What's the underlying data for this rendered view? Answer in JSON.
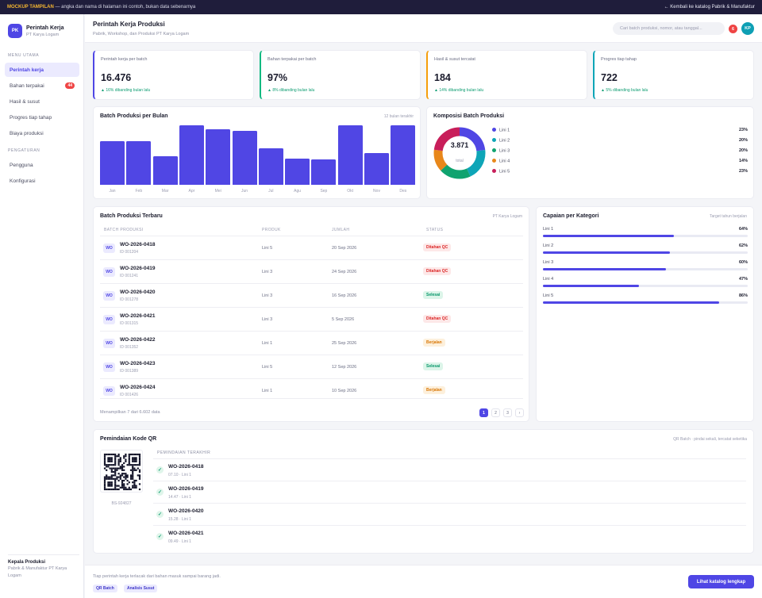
{
  "topbar": {
    "tag": "MOCKUP TAMPILAN",
    "notice": "— angka dan nama di halaman ini contoh, bukan data sebenarnya",
    "back_link": "← Kembali ke katalog Pabrik & Manufaktur"
  },
  "brand": {
    "logo": "PK",
    "title": "Perintah Kerja",
    "subtitle": "PT Karya Logam"
  },
  "sidebar": {
    "section_main": "MENU UTAMA",
    "items": [
      {
        "label": "Perintah kerja",
        "active": true
      },
      {
        "label": "Bahan terpakai",
        "badge": "44"
      },
      {
        "label": "Hasil & susut"
      },
      {
        "label": "Progres tiap tahap"
      },
      {
        "label": "Biaya produksi"
      }
    ],
    "section_settings": "PENGATURAN",
    "settings": [
      {
        "label": "Pengguna"
      },
      {
        "label": "Konfigurasi"
      }
    ],
    "user_name": "Kepala Produksi",
    "user_role": "Pabrik & Manufaktur PT Karya Logam"
  },
  "header": {
    "title": "Perintah Kerja Produksi",
    "subtitle": "Pabrik, Workshop, dan Produksi PT Karya Logam",
    "search_placeholder": "Cari batch produksi, nomor, atau tanggal...",
    "notif_count": "6",
    "avatar": "KP"
  },
  "kpis": [
    {
      "label": "Perintah kerja per batch",
      "value": "16.476",
      "delta": "▲ 16% dibanding bulan lalu",
      "color": "#4f46e5"
    },
    {
      "label": "Bahan terpakai per batch",
      "value": "97%",
      "delta": "▲ 8% dibanding bulan lalu",
      "color": "#10b981"
    },
    {
      "label": "Hasil & susut tercatat",
      "value": "184",
      "delta": "▲ 14% dibanding bulan lalu",
      "color": "#f59e0b"
    },
    {
      "label": "Progres tiap tahap",
      "value": "722",
      "delta": "▲ 5% dibanding bulan lalu",
      "color": "#0ea5b7"
    }
  ],
  "monthly": {
    "title": "Batch Produksi per Bulan",
    "note": "12 bulan terakhir"
  },
  "composition": {
    "title": "Komposisi Batch Produksi",
    "total": "3.871",
    "total_label": "total"
  },
  "recent": {
    "title": "Batch Produksi Terbaru",
    "note": "PT Karya Logam",
    "headers": [
      "BATCH PRODUKSI",
      "PRODUK",
      "JUMLAH",
      "STATUS"
    ],
    "rows": [
      {
        "badge": "WO",
        "code": "WO-2026-0418",
        "id": "ID 001204",
        "product": "Lini 5",
        "date": "20 Sep 2026",
        "status": "Ditahan QC"
      },
      {
        "badge": "WO",
        "code": "WO-2026-0419",
        "id": "ID 001241",
        "product": "Lini 3",
        "date": "24 Sep 2026",
        "status": "Ditahan QC"
      },
      {
        "badge": "WO",
        "code": "WO-2026-0420",
        "id": "ID 001278",
        "product": "Lini 3",
        "date": "16 Sep 2026",
        "status": "Selesai"
      },
      {
        "badge": "WO",
        "code": "WO-2026-0421",
        "id": "ID 001315",
        "product": "Lini 3",
        "date": "5 Sep 2026",
        "status": "Ditahan QC"
      },
      {
        "badge": "WO",
        "code": "WO-2026-0422",
        "id": "ID 001352",
        "product": "Lini 1",
        "date": "25 Sep 2026",
        "status": "Berjalan"
      },
      {
        "badge": "WO",
        "code": "WO-2026-0423",
        "id": "ID 001389",
        "product": "Lini 5",
        "date": "12 Sep 2026",
        "status": "Selesai"
      },
      {
        "badge": "WO",
        "code": "WO-2026-0424",
        "id": "ID 001426",
        "product": "Lini 1",
        "date": "10 Sep 2026",
        "status": "Berjalan"
      }
    ],
    "status_colors": {
      "Ditahan QC": {
        "bg": "#fde8e8",
        "fg": "#dc2626"
      },
      "Selesai": {
        "bg": "#dcf5e9",
        "fg": "#059669"
      },
      "Berjalan": {
        "bg": "#fdf0dc",
        "fg": "#d97706"
      }
    },
    "footer": "Menampilkan 7 dari 6.602 data",
    "pages": [
      "1",
      "2",
      "3",
      "›"
    ]
  },
  "achievement": {
    "title": "Capaian per Kategori",
    "note": "Target tahun berjalan",
    "items": [
      {
        "label": "Lini 1",
        "pct": "64%",
        "value": 64
      },
      {
        "label": "Lini 2",
        "pct": "62%",
        "value": 62
      },
      {
        "label": "Lini 3",
        "pct": "60%",
        "value": 60
      },
      {
        "label": "Lini 4",
        "pct": "47%",
        "value": 47
      },
      {
        "label": "Lini 5",
        "pct": "86%",
        "value": 86
      }
    ]
  },
  "qr": {
    "title": "Pemindaian Kode QR",
    "note": "QR Batch · pindai sekali, tercatat seketika",
    "code": "BS-924827",
    "recent_label": "PEMINDAIAN TERAKHIR",
    "scans": [
      {
        "code": "WO-2026-0418",
        "meta": "07.10 · Lini 1"
      },
      {
        "code": "WO-2026-0419",
        "meta": "14.47 · Lini 1"
      },
      {
        "code": "WO-2026-0420",
        "meta": "15.28 · Lini 1"
      },
      {
        "code": "WO-2026-0421",
        "meta": "09.49 · Lini 1"
      }
    ]
  },
  "footer": {
    "text": "Tiap perintah kerja terlacak dari bahan masuk sampai barang jadi.",
    "chips": [
      "QR Batch",
      "Analisis Susut"
    ],
    "cta": "Lihat katalog lengkap"
  },
  "chart_data": [
    {
      "type": "bar",
      "categories": [
        "Jan",
        "Feb",
        "Mar",
        "Apr",
        "Mei",
        "Jun",
        "Jul",
        "Agu",
        "Sep",
        "Okt",
        "Nov",
        "Des"
      ],
      "values": [
        74,
        74,
        48,
        100,
        93,
        91,
        61,
        44,
        43,
        100,
        54,
        100
      ],
      "title": "Batch Produksi per Bulan",
      "ylim": [
        0,
        100
      ],
      "grid": false
    },
    {
      "type": "pie",
      "title": "Komposisi Batch Produksi",
      "categories": [
        "Lini 1",
        "Lini 2",
        "Lini 3",
        "Lini 4",
        "Lini 5"
      ],
      "values": [
        23,
        20,
        20,
        14,
        23
      ],
      "labels": [
        "23%",
        "20%",
        "20%",
        "14%",
        "23%"
      ],
      "colors": [
        "#5046e4",
        "#0ea5b7",
        "#10a36f",
        "#e8871a",
        "#c81e5a"
      ],
      "legend": "right"
    }
  ]
}
